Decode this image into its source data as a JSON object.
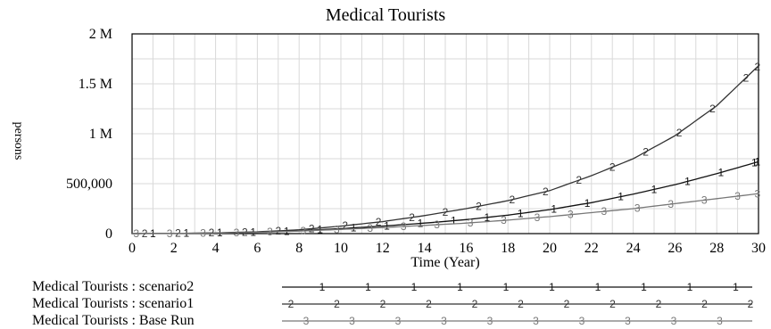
{
  "chart_data": {
    "type": "line",
    "title": "Medical Tourists",
    "xlabel": "Time (Year)",
    "ylabel": "persons",
    "xlim": [
      0,
      30
    ],
    "ylim": [
      0,
      2000000
    ],
    "x_ticks": [
      0,
      2,
      4,
      6,
      8,
      10,
      12,
      14,
      16,
      18,
      20,
      22,
      24,
      26,
      28,
      30
    ],
    "y_ticks": [
      {
        "value": 0,
        "label": "0"
      },
      {
        "value": 500000,
        "label": "500,000"
      },
      {
        "value": 1000000,
        "label": "1 M"
      },
      {
        "value": 1500000,
        "label": "1.5 M"
      },
      {
        "value": 2000000,
        "label": "2 M"
      }
    ],
    "grid": true,
    "legend_position": "bottom",
    "x": [
      0,
      2,
      4,
      6,
      8,
      10,
      12,
      14,
      16,
      18,
      20,
      22,
      24,
      26,
      28,
      30
    ],
    "series": [
      {
        "name": "Medical Tourists : scenario2",
        "marker": "1",
        "color": "#111111",
        "values": [
          0,
          2000,
          6000,
          14000,
          28000,
          50000,
          75000,
          105000,
          140000,
          185000,
          240000,
          310000,
          395000,
          490000,
          600000,
          720000
        ]
      },
      {
        "name": "Medical Tourists : scenario1",
        "marker": "2",
        "color": "#333333",
        "values": [
          0,
          2000,
          8000,
          18000,
          38000,
          75000,
          120000,
          180000,
          250000,
          330000,
          430000,
          580000,
          750000,
          980000,
          1280000,
          1680000
        ]
      },
      {
        "name": "Medical Tourists : Base Run",
        "marker": "3",
        "color": "#777777",
        "values": [
          0,
          2000,
          5000,
          12000,
          25000,
          42000,
          60000,
          82000,
          105000,
          135000,
          170000,
          210000,
          250000,
          300000,
          350000,
          400000
        ]
      }
    ]
  }
}
